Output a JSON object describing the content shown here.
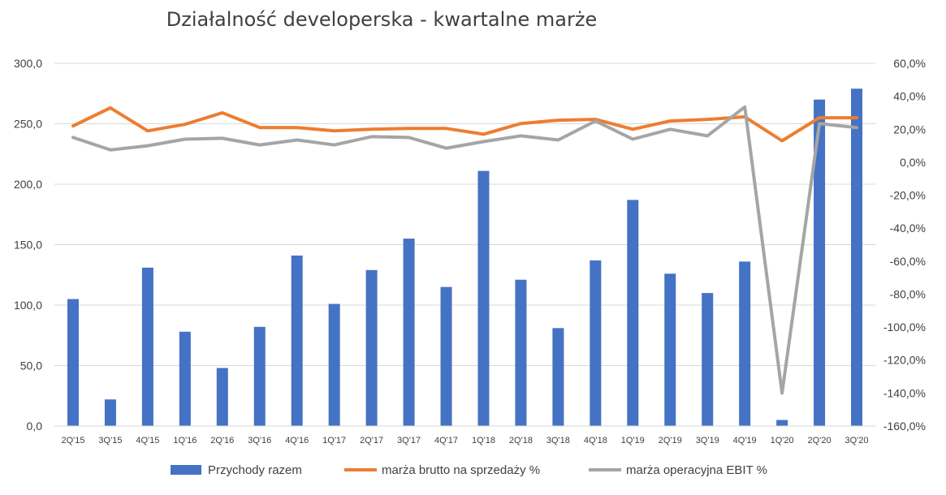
{
  "chart_data": {
    "type": "bar",
    "title": "Działalność developerska - kwartalne marże",
    "categories": [
      "2Q'15",
      "3Q'15",
      "4Q'15",
      "1Q'16",
      "2Q'16",
      "3Q'16",
      "4Q'16",
      "1Q'17",
      "2Q'17",
      "3Q'17",
      "4Q'17",
      "1Q'18",
      "2Q'18",
      "3Q'18",
      "4Q'18",
      "1Q'19",
      "2Q'19",
      "3Q'19",
      "4Q'19",
      "1Q'20",
      "2Q'20",
      "3Q'20"
    ],
    "y_left": {
      "range": [
        0,
        300
      ],
      "ticks": [
        0,
        50,
        100,
        150,
        200,
        250,
        300
      ],
      "tick_labels": [
        "0,0",
        "50,0",
        "100,0",
        "150,0",
        "200,0",
        "250,0",
        "300,0"
      ]
    },
    "y_right": {
      "range": [
        -160,
        60
      ],
      "ticks": [
        -160,
        -140,
        -120,
        -100,
        -80,
        -60,
        -40,
        -20,
        0,
        20,
        40,
        60
      ],
      "tick_labels": [
        "-160,0%",
        "-140,0%",
        "-120,0%",
        "-100,0%",
        "-80,0%",
        "-60,0%",
        "-40,0%",
        "-20,0%",
        "0,0%",
        "20,0%",
        "40,0%",
        "60,0%"
      ]
    },
    "grid": true,
    "legend_position": "bottom",
    "series": [
      {
        "name": "Przychody razem",
        "type": "bar",
        "axis": "left",
        "color": "#4472c4",
        "values": [
          105,
          22,
          131,
          78,
          48,
          82,
          141,
          101,
          129,
          155,
          115,
          211,
          121,
          81,
          137,
          187,
          126,
          110,
          136,
          5,
          270,
          279
        ]
      },
      {
        "name": "marża brutto na sprzedaży %",
        "type": "line",
        "axis": "right",
        "color": "#ed7d31",
        "values": [
          22,
          33,
          19,
          23,
          30,
          21,
          21,
          19,
          20,
          20.5,
          20.5,
          17,
          23.5,
          25.5,
          26,
          20,
          25,
          26,
          27.5,
          13,
          27,
          27
        ]
      },
      {
        "name": "marża operacyjna EBIT %",
        "type": "line",
        "axis": "right",
        "color": "#a5a5a5",
        "values": [
          15,
          7.5,
          10,
          14,
          14.5,
          10.5,
          13.5,
          10.5,
          15.5,
          15,
          8.5,
          12.5,
          16,
          13.5,
          25,
          14,
          20,
          16,
          33.5,
          -140,
          23.5,
          21
        ]
      }
    ]
  }
}
